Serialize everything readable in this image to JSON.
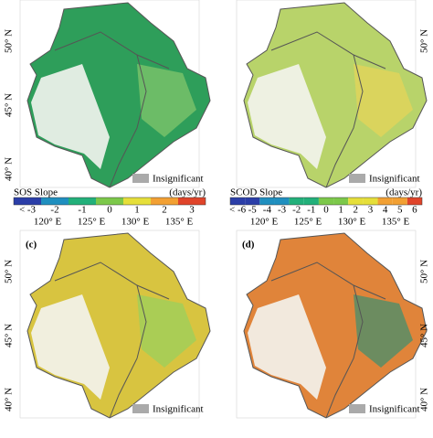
{
  "panels": [
    {
      "lat_labels": [
        "50° N",
        "45° N",
        "40° N"
      ],
      "legend": "Insignificant",
      "colorbar": {
        "title": "SOS  Slope",
        "unit": "(days/yr)",
        "ticks": [
          "< -3",
          "-2",
          "-1",
          "0",
          "1",
          "2",
          "3"
        ]
      },
      "lon_labels": [
        "120° E",
        "125° E",
        "130° E",
        "135° E"
      ]
    },
    {
      "lat_labels": [
        "50° N"
      ],
      "legend": "Insignificant",
      "colorbar": {
        "title": "SCOD  Slope",
        "unit": "(days/yr)",
        "ticks": [
          "< -6",
          "-5",
          "-4",
          "-3",
          "-2",
          "-1",
          "0",
          "1",
          "2",
          "3",
          "4",
          "5",
          "6"
        ]
      },
      "lon_labels": [
        "120° E",
        "125° E",
        "130° E",
        "135° E"
      ]
    },
    {
      "label": "(c)",
      "lat_labels": [
        "50° N",
        "45° N",
        "40° N"
      ],
      "legend": "Insignificant"
    },
    {
      "label": "(d)",
      "lat_labels": [
        "50° N",
        "45° N",
        "40° N"
      ],
      "legend": "Insignificant"
    }
  ]
}
